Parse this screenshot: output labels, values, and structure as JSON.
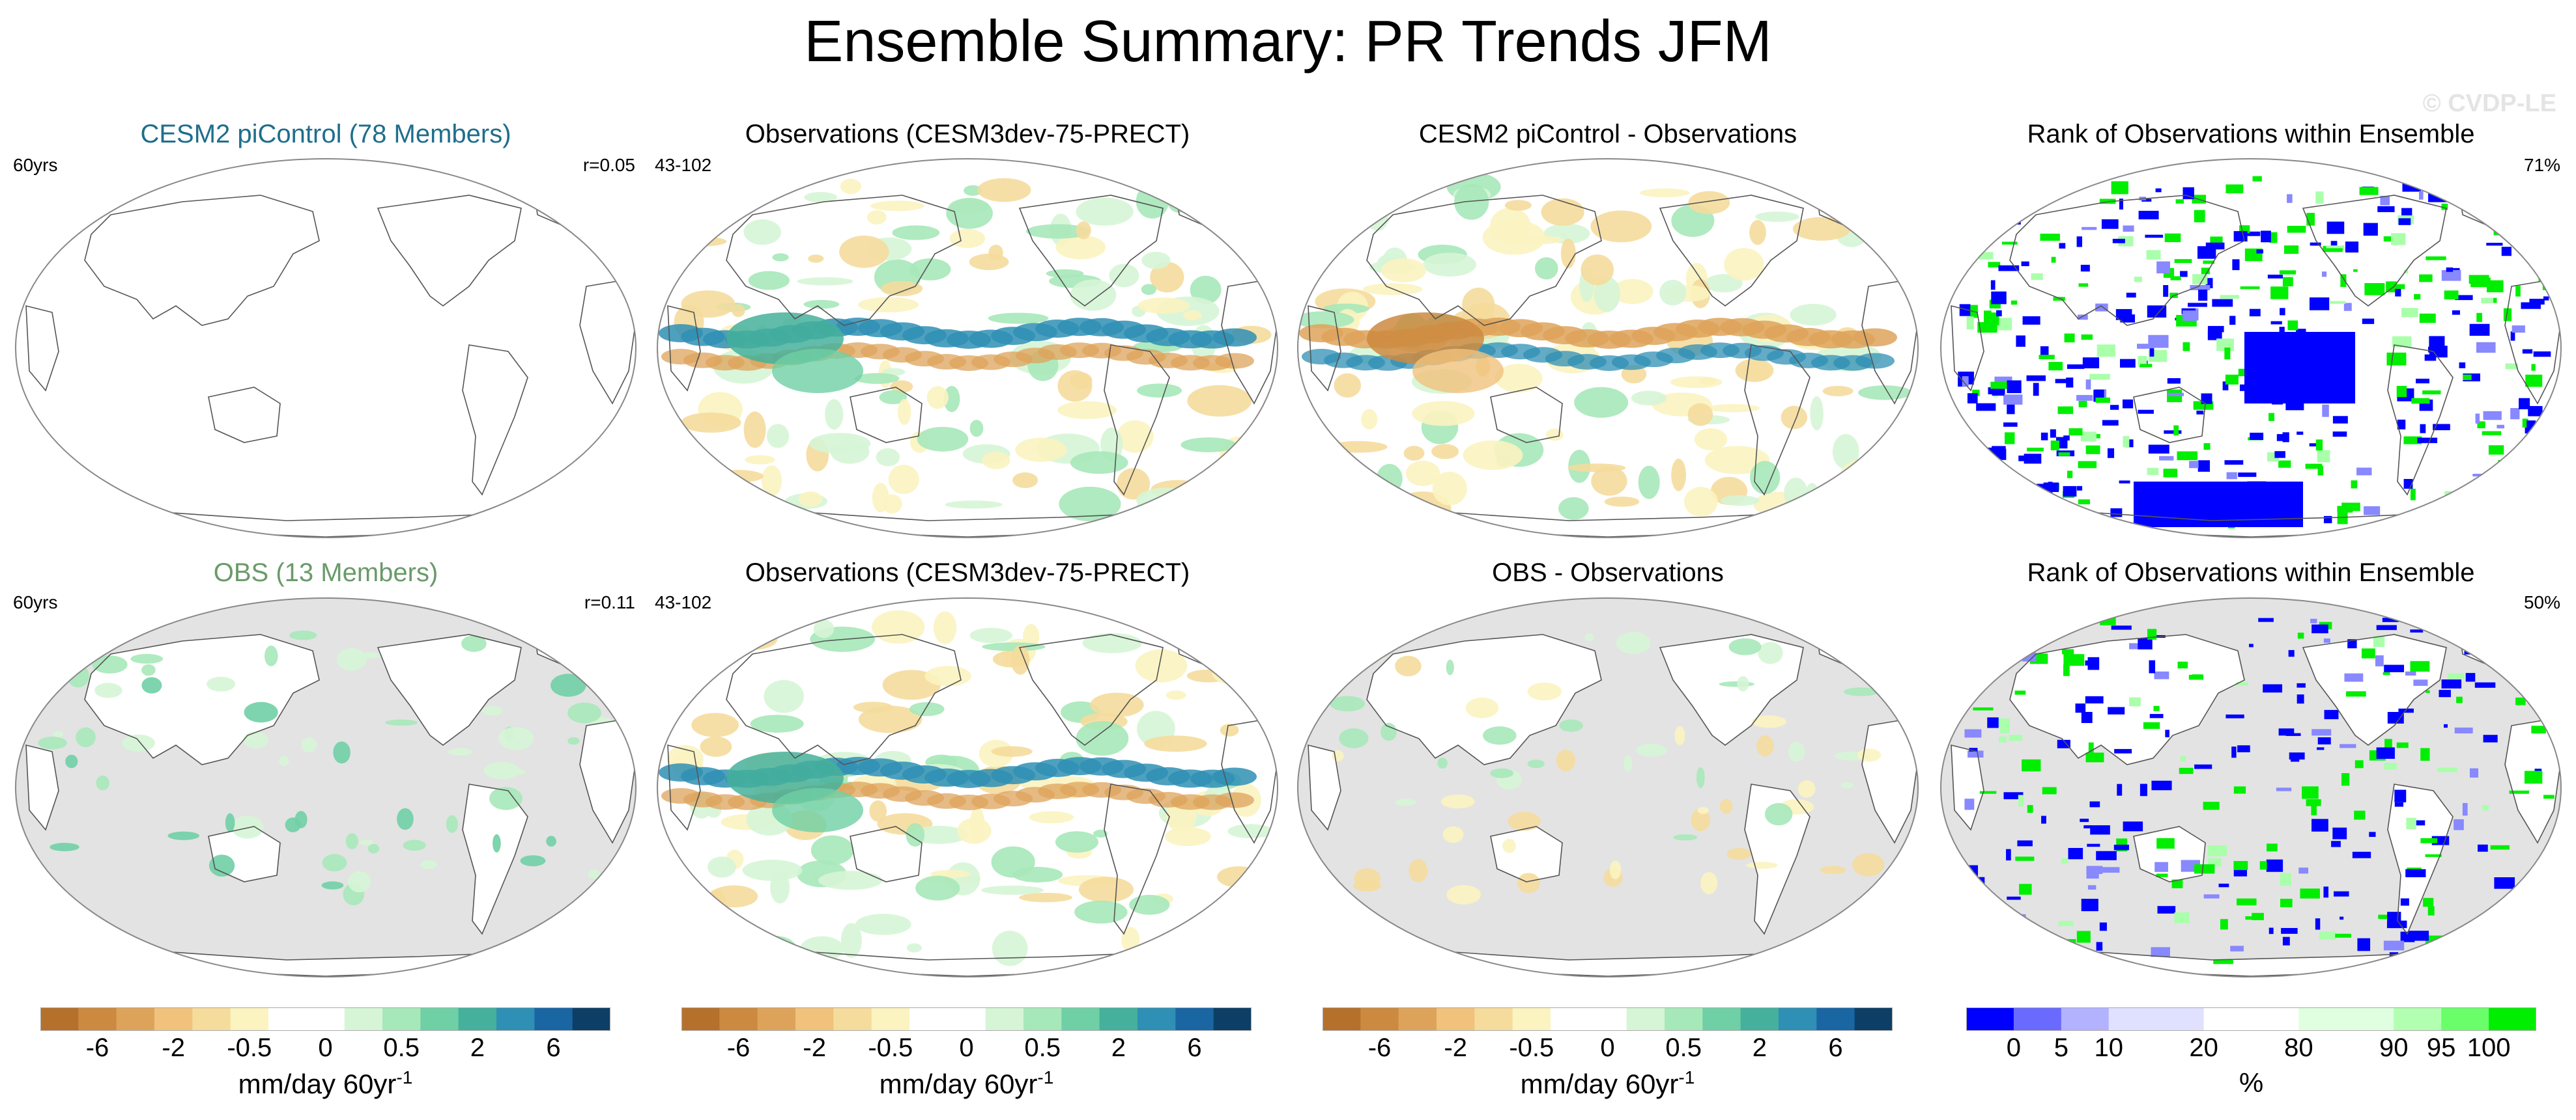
{
  "title": "Ensemble Summary: PR Trends JFM",
  "watermark": "© CVDP-LE",
  "colors": {
    "model_title": "#1f6e8c",
    "obs_title": "#6a9a6a",
    "land_mask": "#e3e3e3",
    "rank_low": "#0000ff",
    "rank_high": "#00ee00"
  },
  "rows": [
    {
      "panels": [
        {
          "title": "CESM2 piControl (78 Members)",
          "left_label": "60yrs",
          "right_label": "r=0.05",
          "pattern": "nearly-blank",
          "masked": false
        },
        {
          "title": "Observations (CESM3dev-75-PRECT)",
          "left_label": "43-102",
          "right_label": "",
          "pattern": "observed-trend",
          "masked": false
        },
        {
          "title": "CESM2 piControl - Observations",
          "left_label": "",
          "right_label": "",
          "pattern": "difference",
          "masked": false
        },
        {
          "title": "Rank of Observations within Ensemble",
          "left_label": "",
          "right_label": "71%",
          "pattern": "rank",
          "masked": false
        }
      ]
    },
    {
      "panels": [
        {
          "title": "OBS (13 Members)",
          "left_label": "60yrs",
          "right_label": "r=0.11",
          "pattern": "land-only",
          "masked": true
        },
        {
          "title": "Observations (CESM3dev-75-PRECT)",
          "left_label": "43-102",
          "right_label": "",
          "pattern": "observed-trend",
          "masked": false
        },
        {
          "title": "OBS - Observations",
          "left_label": "",
          "right_label": "",
          "pattern": "land-only-diff",
          "masked": true
        },
        {
          "title": "Rank of Observations within Ensemble",
          "left_label": "",
          "right_label": "50%",
          "pattern": "rank-land",
          "masked": true
        }
      ]
    }
  ],
  "colorbars": [
    {
      "colors": [
        "#b5712b",
        "#cc8a40",
        "#dea35b",
        "#f0c27c",
        "#f5dc9c",
        "#fbf3c0",
        "#ffffff",
        "#ffffff",
        "#d6f5d6",
        "#a7e8b9",
        "#6fcfa5",
        "#45b09b",
        "#2f8fb4",
        "#1a66a3",
        "#0d3f66"
      ],
      "tick_labels": [
        "-6",
        "-2",
        "-0.5",
        "0",
        "0.5",
        "2",
        "6"
      ],
      "unit": "mm/day 60yr",
      "unit_sup": "-1"
    },
    {
      "colors": [
        "#b5712b",
        "#cc8a40",
        "#dea35b",
        "#f0c27c",
        "#f5dc9c",
        "#fbf3c0",
        "#ffffff",
        "#ffffff",
        "#d6f5d6",
        "#a7e8b9",
        "#6fcfa5",
        "#45b09b",
        "#2f8fb4",
        "#1a66a3",
        "#0d3f66"
      ],
      "tick_labels": [
        "-6",
        "-2",
        "-0.5",
        "0",
        "0.5",
        "2",
        "6"
      ],
      "unit": "mm/day 60yr",
      "unit_sup": "-1"
    },
    {
      "colors": [
        "#b5712b",
        "#cc8a40",
        "#dea35b",
        "#f0c27c",
        "#f5dc9c",
        "#fbf3c0",
        "#ffffff",
        "#ffffff",
        "#d6f5d6",
        "#a7e8b9",
        "#6fcfa5",
        "#45b09b",
        "#2f8fb4",
        "#1a66a3",
        "#0d3f66"
      ],
      "tick_labels": [
        "-6",
        "-2",
        "-0.5",
        "0",
        "0.5",
        "2",
        "6"
      ],
      "unit": "mm/day 60yr",
      "unit_sup": "-1"
    },
    {
      "colors": [
        "#0000ff",
        "#6a6aff",
        "#b2b2ff",
        "#e0e0ff",
        "#e0e0ff",
        "#ffffff",
        "#ffffff",
        "#e0ffe0",
        "#e0ffe0",
        "#b2ffb2",
        "#6aff6a",
        "#00ee00"
      ],
      "tick_labels": [
        "0",
        "5",
        "10",
        "20",
        "80",
        "90",
        "95",
        "100"
      ],
      "unit": "%",
      "unit_sup": ""
    }
  ]
}
